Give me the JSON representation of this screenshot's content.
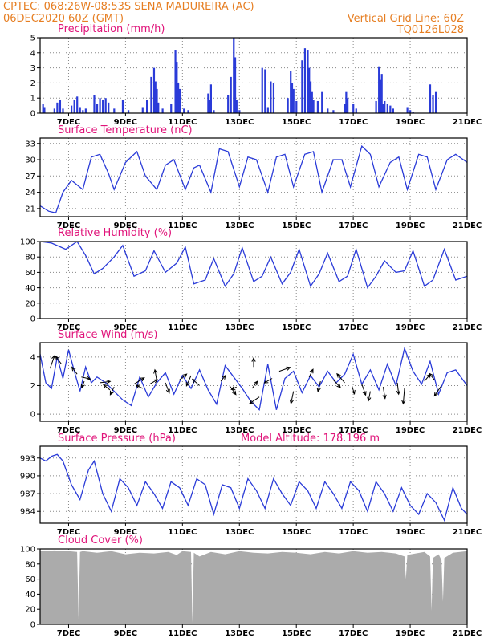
{
  "header": {
    "line1": "CPTEC:    068:26W-08:53S   SENA MADUREIRA (AC)",
    "line2_left": "06DEC2020 60Z (GMT)",
    "line2_right": "Vertical Grid Line: 60Z",
    "code": "TQ0126L028"
  },
  "colors": {
    "header_orange": "#e67e22",
    "title_pink": "#e0147a",
    "series_blue": "#2a3bd8",
    "cloud_gray": "#ababab",
    "arrow_black": "#000000"
  },
  "chart_data": [
    {
      "id": "precip",
      "type": "bar",
      "title": "Precipitation (mm/h)",
      "ylim": [
        0,
        5
      ],
      "yticks": [
        0,
        1,
        2,
        3,
        4,
        5
      ],
      "xlim": [
        6,
        21
      ],
      "xticks": [
        7,
        9,
        11,
        13,
        15,
        17,
        19,
        21
      ],
      "xtick_labels": [
        "7DEC",
        "9DEC",
        "11DEC",
        "13DEC",
        "15DEC",
        "17DEC",
        "19DEC",
        "21DEC"
      ],
      "grid": "dotted",
      "x": [
        6.1,
        6.15,
        6.5,
        6.6,
        6.7,
        6.8,
        7.1,
        7.2,
        7.3,
        7.4,
        7.5,
        7.6,
        7.9,
        8.0,
        8.1,
        8.2,
        8.3,
        8.4,
        8.6,
        8.9,
        9.1,
        9.6,
        9.75,
        9.9,
        10.0,
        10.05,
        10.1,
        10.15,
        10.3,
        10.6,
        10.75,
        10.8,
        10.85,
        10.9,
        11.05,
        11.2,
        11.9,
        11.95,
        12.0,
        12.1,
        12.6,
        12.7,
        12.8,
        12.85,
        12.9,
        13.0,
        13.8,
        13.9,
        14.0,
        14.1,
        14.2,
        14.7,
        14.8,
        14.85,
        14.9,
        15.0,
        15.2,
        15.3,
        15.4,
        15.45,
        15.5,
        15.55,
        15.6,
        15.75,
        15.9,
        16.1,
        16.3,
        16.7,
        16.75,
        16.8,
        17.0,
        17.1,
        17.8,
        17.9,
        17.95,
        18.0,
        18.05,
        18.1,
        18.2,
        18.3,
        18.4,
        18.9,
        19.0,
        19.1,
        19.7,
        19.8,
        19.9
      ],
      "values": [
        0.6,
        0.4,
        0.3,
        0.7,
        0.9,
        0.3,
        0.5,
        0.9,
        1.1,
        0.4,
        0.2,
        0.3,
        1.2,
        0.6,
        1.0,
        0.9,
        1.0,
        0.7,
        0.3,
        0.9,
        0.2,
        0.4,
        0.9,
        2.4,
        3.0,
        2.1,
        1.6,
        0.7,
        0.3,
        0.6,
        4.2,
        3.4,
        2.0,
        1.6,
        0.3,
        0.2,
        1.3,
        0.9,
        1.9,
        0.2,
        1.2,
        2.4,
        5.0,
        3.7,
        0.9,
        0.2,
        3.0,
        2.9,
        0.4,
        2.1,
        2.0,
        1.0,
        2.8,
        2.0,
        1.6,
        0.8,
        3.5,
        4.3,
        4.2,
        3.0,
        2.1,
        1.4,
        0.9,
        0.8,
        1.4,
        0.3,
        0.2,
        0.6,
        1.4,
        1.0,
        0.6,
        0.3,
        0.8,
        3.1,
        2.2,
        2.6,
        0.6,
        0.8,
        0.6,
        0.5,
        0.3,
        0.4,
        0.2,
        0.1,
        1.9,
        1.2,
        1.4
      ]
    },
    {
      "id": "temp",
      "type": "line",
      "title": "Surface Temperature (nC)",
      "ylim": [
        19.5,
        34
      ],
      "yticks": [
        21,
        24,
        27,
        30,
        33
      ],
      "xlim": [
        6,
        21
      ],
      "xticks": [
        7,
        9,
        11,
        13,
        15,
        17,
        19,
        21
      ],
      "xtick_labels": [
        "7DEC",
        "9DEC",
        "11DEC",
        "13DEC",
        "15DEC",
        "17DEC",
        "19DEC",
        "21DEC"
      ],
      "grid": "dotted",
      "x": [
        6.0,
        6.3,
        6.55,
        6.8,
        7.1,
        7.5,
        7.8,
        8.1,
        8.4,
        8.6,
        9.0,
        9.4,
        9.7,
        10.1,
        10.4,
        10.7,
        11.1,
        11.4,
        11.6,
        12.0,
        12.3,
        12.6,
        13.0,
        13.3,
        13.6,
        14.0,
        14.3,
        14.6,
        14.9,
        15.3,
        15.6,
        15.9,
        16.3,
        16.6,
        16.9,
        17.3,
        17.6,
        17.9,
        18.3,
        18.6,
        18.9,
        19.3,
        19.6,
        19.9,
        20.3,
        20.6,
        21.0
      ],
      "y": [
        21.5,
        20.5,
        20.2,
        24.0,
        26.2,
        24.5,
        30.5,
        31.0,
        27.5,
        24.5,
        29.5,
        31.5,
        27.0,
        24.5,
        29.0,
        30.0,
        24.5,
        28.5,
        29.0,
        24.0,
        32.0,
        31.5,
        25.0,
        30.5,
        30.0,
        24.0,
        30.5,
        31.0,
        25.0,
        31.0,
        31.5,
        24.0,
        30.0,
        30.0,
        25.0,
        32.5,
        31.0,
        25.0,
        29.5,
        30.5,
        24.5,
        31.0,
        30.5,
        24.5,
        30.0,
        31.0,
        29.5
      ]
    },
    {
      "id": "rh",
      "type": "line",
      "title": "Relative Humidity (%)",
      "ylim": [
        0,
        100
      ],
      "yticks": [
        0,
        20,
        40,
        60,
        80,
        100
      ],
      "xlim": [
        6,
        21
      ],
      "xticks": [
        7,
        9,
        11,
        13,
        15,
        17,
        19,
        21
      ],
      "xtick_labels": [
        "7DEC",
        "9DEC",
        "11DEC",
        "13DEC",
        "15DEC",
        "17DEC",
        "19DEC",
        "21DEC"
      ],
      "grid": "dotted",
      "x": [
        6.0,
        6.4,
        6.9,
        7.3,
        7.6,
        7.9,
        8.2,
        8.6,
        8.9,
        9.3,
        9.7,
        10.0,
        10.4,
        10.8,
        11.1,
        11.4,
        11.8,
        12.1,
        12.5,
        12.8,
        13.1,
        13.5,
        13.8,
        14.1,
        14.5,
        14.8,
        15.1,
        15.5,
        15.8,
        16.1,
        16.5,
        16.8,
        17.1,
        17.5,
        17.8,
        18.1,
        18.5,
        18.8,
        19.1,
        19.5,
        19.8,
        20.2,
        20.6,
        21.0
      ],
      "y": [
        100,
        98,
        90,
        100,
        82,
        58,
        65,
        80,
        95,
        55,
        62,
        88,
        60,
        72,
        93,
        45,
        50,
        78,
        42,
        58,
        92,
        48,
        55,
        80,
        45,
        60,
        90,
        42,
        58,
        85,
        48,
        55,
        90,
        40,
        55,
        75,
        60,
        62,
        88,
        42,
        50,
        90,
        50,
        55
      ]
    },
    {
      "id": "wind",
      "type": "line",
      "title": "Surface Wind (m/s)",
      "ylim": [
        -0.5,
        5
      ],
      "yticks": [
        0,
        2,
        4
      ],
      "xlim": [
        6,
        21
      ],
      "xticks": [
        7,
        9,
        11,
        13,
        15,
        17,
        19,
        21
      ],
      "xtick_labels": [
        "7DEC",
        "9DEC",
        "11DEC",
        "13DEC",
        "15DEC",
        "17DEC",
        "19DEC",
        "21DEC"
      ],
      "grid": "dotted",
      "x": [
        6.0,
        6.2,
        6.4,
        6.6,
        6.8,
        7.0,
        7.2,
        7.4,
        7.6,
        7.8,
        8.0,
        8.3,
        8.6,
        8.9,
        9.2,
        9.5,
        9.8,
        10.1,
        10.4,
        10.7,
        11.0,
        11.3,
        11.6,
        11.9,
        12.2,
        12.5,
        12.8,
        13.1,
        13.4,
        13.7,
        14.0,
        14.3,
        14.6,
        14.9,
        15.2,
        15.5,
        15.8,
        16.1,
        16.4,
        16.7,
        17.0,
        17.3,
        17.6,
        17.9,
        18.2,
        18.5,
        18.8,
        19.1,
        19.4,
        19.7,
        20.0,
        20.3,
        20.6,
        21.0
      ],
      "y": [
        4.2,
        2.2,
        1.8,
        4.0,
        2.5,
        4.5,
        3.0,
        1.6,
        3.3,
        2.2,
        2.6,
        2.2,
        1.6,
        1.0,
        0.6,
        2.6,
        1.2,
        2.2,
        2.9,
        1.4,
        2.7,
        1.8,
        3.1,
        1.7,
        0.7,
        3.4,
        2.6,
        1.8,
        0.9,
        0.3,
        3.5,
        0.3,
        2.5,
        3.0,
        1.5,
        2.7,
        1.9,
        3.0,
        2.2,
        2.8,
        4.2,
        2.1,
        3.1,
        1.7,
        3.5,
        2.0,
        4.6,
        3.0,
        2.1,
        3.7,
        1.4,
        2.9,
        3.1,
        2.0
      ],
      "arrows": [
        {
          "x": 6.35,
          "y": 3.2,
          "u": 0.35,
          "v": 1.0
        },
        {
          "x": 6.75,
          "y": 3.5,
          "u": -0.45,
          "v": 0.6
        },
        {
          "x": 7.3,
          "y": 2.8,
          "u": -0.4,
          "v": 0.55
        },
        {
          "x": 7.45,
          "y": 2.6,
          "u": 0.7,
          "v": -0.15
        },
        {
          "x": 7.55,
          "y": 2.3,
          "u": -0.2,
          "v": -0.5
        },
        {
          "x": 8.1,
          "y": 2.2,
          "u": 0.8,
          "v": 0.1
        },
        {
          "x": 8.45,
          "y": 1.7,
          "u": -0.5,
          "v": 0.4
        },
        {
          "x": 8.6,
          "y": 1.9,
          "u": -0.3,
          "v": -0.6
        },
        {
          "x": 9.3,
          "y": 2.1,
          "u": 0.8,
          "v": 0.5
        },
        {
          "x": 9.6,
          "y": 1.8,
          "u": -0.5,
          "v": 0.25
        },
        {
          "x": 9.85,
          "y": 2.1,
          "u": 0.6,
          "v": 0.35
        },
        {
          "x": 10.1,
          "y": 2.3,
          "u": -0.15,
          "v": 0.9
        },
        {
          "x": 10.4,
          "y": 2.2,
          "u": 0.3,
          "v": -0.8
        },
        {
          "x": 10.9,
          "y": 2.4,
          "u": 0.55,
          "v": 0.45
        },
        {
          "x": 11.3,
          "y": 2.7,
          "u": -0.35,
          "v": -0.8
        },
        {
          "x": 11.6,
          "y": 2.0,
          "u": -0.55,
          "v": 0.5
        },
        {
          "x": 12.35,
          "y": 2.3,
          "u": 0.35,
          "v": 0.45
        },
        {
          "x": 12.65,
          "y": 2.0,
          "u": 0.5,
          "v": -0.7
        },
        {
          "x": 12.9,
          "y": 1.9,
          "u": -0.4,
          "v": -0.2
        },
        {
          "x": 13.5,
          "y": 3.3,
          "u": 0.0,
          "v": 0.7
        },
        {
          "x": 13.45,
          "y": 1.8,
          "u": 0.4,
          "v": 0.55
        },
        {
          "x": 13.7,
          "y": 1.2,
          "u": -0.75,
          "v": -0.5
        },
        {
          "x": 14.15,
          "y": 2.5,
          "u": -0.6,
          "v": -0.35
        },
        {
          "x": 14.4,
          "y": 3.0,
          "u": 0.85,
          "v": 0.3
        },
        {
          "x": 14.9,
          "y": 1.6,
          "u": -0.2,
          "v": -0.95
        },
        {
          "x": 15.45,
          "y": 2.6,
          "u": 0.3,
          "v": 0.6
        },
        {
          "x": 15.85,
          "y": 2.3,
          "u": -0.2,
          "v": -0.8
        },
        {
          "x": 16.3,
          "y": 2.4,
          "u": 0.55,
          "v": -0.6
        },
        {
          "x": 16.7,
          "y": 2.2,
          "u": -0.6,
          "v": 0.7
        },
        {
          "x": 16.95,
          "y": 2.0,
          "u": 0.2,
          "v": -0.65
        },
        {
          "x": 17.3,
          "y": 2.1,
          "u": 0.3,
          "v": -0.85
        },
        {
          "x": 17.6,
          "y": 1.6,
          "u": -0.15,
          "v": -0.75
        },
        {
          "x": 18.05,
          "y": 1.9,
          "u": 0.15,
          "v": -0.9
        },
        {
          "x": 18.55,
          "y": 2.2,
          "u": 0.1,
          "v": -0.9
        },
        {
          "x": 18.8,
          "y": 1.8,
          "u": -0.1,
          "v": -1.2
        },
        {
          "x": 19.5,
          "y": 2.3,
          "u": 0.45,
          "v": 0.55
        },
        {
          "x": 19.85,
          "y": 2.4,
          "u": -0.4,
          "v": 0.5
        },
        {
          "x": 20.1,
          "y": 2.0,
          "u": -0.55,
          "v": -0.8
        }
      ]
    },
    {
      "id": "pressure",
      "type": "line",
      "title": "Surface Pressure (hPa)",
      "annotation": "Model Altitude: 178.196 m",
      "ylim": [
        982,
        995
      ],
      "yticks": [
        984,
        987,
        990,
        993
      ],
      "xlim": [
        6,
        21
      ],
      "xticks": [
        7,
        9,
        11,
        13,
        15,
        17,
        19,
        21
      ],
      "xtick_labels": [
        "7DEC",
        "9DEC",
        "11DEC",
        "13DEC",
        "15DEC",
        "17DEC",
        "19DEC",
        "21DEC"
      ],
      "grid": "dotted",
      "x": [
        6.0,
        6.2,
        6.4,
        6.6,
        6.8,
        7.1,
        7.4,
        7.7,
        7.9,
        8.2,
        8.5,
        8.8,
        9.1,
        9.4,
        9.7,
        10.0,
        10.3,
        10.6,
        10.9,
        11.2,
        11.5,
        11.8,
        12.1,
        12.4,
        12.7,
        13.0,
        13.3,
        13.6,
        13.9,
        14.2,
        14.5,
        14.8,
        15.1,
        15.4,
        15.7,
        16.0,
        16.3,
        16.6,
        16.9,
        17.2,
        17.5,
        17.8,
        18.1,
        18.4,
        18.7,
        19.0,
        19.3,
        19.6,
        19.9,
        20.2,
        20.5,
        20.8,
        21.0
      ],
      "y": [
        993.0,
        992.5,
        993.3,
        993.6,
        992.5,
        988.5,
        986.0,
        991.0,
        992.5,
        987.0,
        984.0,
        989.5,
        988.0,
        985.0,
        989.0,
        987.0,
        984.5,
        989.0,
        988.0,
        985.0,
        989.5,
        988.5,
        983.5,
        988.5,
        988.0,
        984.5,
        989.5,
        987.5,
        984.5,
        989.5,
        987.0,
        985.0,
        989.0,
        987.5,
        984.5,
        989.0,
        987.0,
        984.5,
        989.0,
        987.5,
        984.0,
        989.0,
        987.0,
        984.0,
        988.0,
        985.0,
        983.5,
        987.0,
        985.5,
        982.5,
        988.0,
        984.5,
        983.5
      ]
    },
    {
      "id": "cloud",
      "type": "area",
      "title": "Cloud Cover (%)",
      "ylim": [
        0,
        100
      ],
      "yticks": [
        0,
        20,
        40,
        60,
        80,
        100
      ],
      "xlim": [
        6,
        21
      ],
      "xticks": [
        7,
        9,
        11,
        13,
        15,
        17,
        19,
        21
      ],
      "xtick_labels": [
        "7DEC",
        "9DEC",
        "11DEC",
        "13DEC",
        "15DEC",
        "17DEC",
        "19DEC",
        "21DEC"
      ],
      "grid": "dotted",
      "x": [
        6.0,
        6.5,
        7.0,
        7.3,
        7.35,
        7.4,
        7.5,
        8.0,
        8.5,
        9.0,
        9.5,
        10.0,
        10.5,
        10.8,
        11.0,
        11.3,
        11.35,
        11.4,
        11.6,
        12.0,
        12.5,
        13.0,
        13.5,
        14.0,
        14.5,
        15.0,
        15.5,
        16.0,
        16.5,
        17.0,
        17.5,
        18.0,
        18.5,
        18.8,
        18.85,
        18.9,
        19.5,
        19.7,
        19.75,
        19.8,
        20.0,
        20.1,
        20.15,
        20.2,
        20.5,
        21.0
      ],
      "y": [
        97,
        98,
        97,
        96,
        8,
        96,
        97,
        95,
        97,
        93,
        95,
        94,
        96,
        92,
        97,
        96,
        2,
        95,
        90,
        96,
        93,
        97,
        95,
        94,
        96,
        95,
        93,
        96,
        94,
        97,
        95,
        96,
        94,
        90,
        60,
        92,
        96,
        90,
        18,
        88,
        93,
        85,
        30,
        88,
        95,
        97
      ]
    }
  ]
}
